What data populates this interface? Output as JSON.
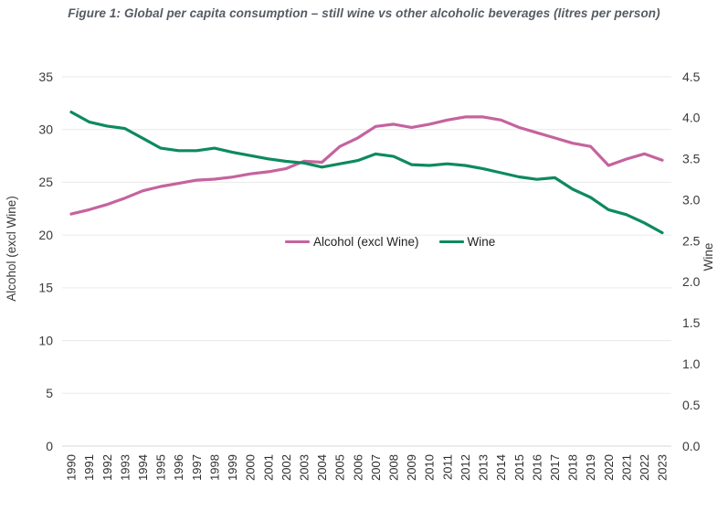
{
  "title": "Figure 1: Global per capita consumption – still wine vs other alcoholic beverages (litres per person)",
  "chart_data": {
    "type": "line",
    "x": [
      "1990",
      "1991",
      "1992",
      "1993",
      "1994",
      "1995",
      "1996",
      "1997",
      "1998",
      "1999",
      "2000",
      "2001",
      "2002",
      "2003",
      "2004",
      "2005",
      "2006",
      "2007",
      "2008",
      "2009",
      "2010",
      "2011",
      "2012",
      "2013",
      "2014",
      "2015",
      "2016",
      "2017",
      "2018",
      "2019",
      "2020",
      "2021",
      "2022",
      "2023"
    ],
    "series": [
      {
        "name": "Alcohol (excl Wine)",
        "axis": "left",
        "color": "#c5639e",
        "values": [
          22.0,
          22.4,
          22.9,
          23.5,
          24.2,
          24.6,
          24.9,
          25.2,
          25.3,
          25.5,
          25.8,
          26.0,
          26.3,
          27.0,
          26.9,
          28.4,
          29.2,
          30.3,
          30.5,
          30.2,
          30.5,
          30.9,
          31.2,
          31.2,
          30.9,
          30.2,
          29.7,
          29.2,
          28.7,
          28.4,
          26.6,
          27.2,
          27.7,
          27.1
        ]
      },
      {
        "name": "Wine",
        "axis": "right",
        "color": "#0d8a5e",
        "values": [
          4.07,
          3.95,
          3.9,
          3.87,
          3.75,
          3.63,
          3.6,
          3.6,
          3.63,
          3.58,
          3.54,
          3.5,
          3.47,
          3.45,
          3.4,
          3.44,
          3.48,
          3.56,
          3.53,
          3.43,
          3.42,
          3.44,
          3.42,
          3.38,
          3.33,
          3.28,
          3.25,
          3.27,
          3.13,
          3.03,
          2.88,
          2.82,
          2.72,
          2.6
        ]
      }
    ],
    "left_axis": {
      "label": "Alcohol (excl Wine)",
      "min": 0,
      "max": 35,
      "ticks": [
        0,
        5,
        10,
        15,
        20,
        25,
        30,
        35
      ]
    },
    "right_axis": {
      "label": "Wine",
      "min": 0,
      "max": 4.5,
      "ticks": [
        "0.0",
        "0.5",
        "1.0",
        "1.5",
        "2.0",
        "2.5",
        "3.0",
        "3.5",
        "4.0",
        "4.5"
      ]
    },
    "grid": "horizontal",
    "legend_position": "inside-center"
  },
  "colors": {
    "background": "#ffffff",
    "gridline": "#eaeaea",
    "baseline": "#d7d7d7",
    "tick_text": "#3b3b3b",
    "year_text": "#2e2e2e",
    "title_text": "#565b63"
  }
}
